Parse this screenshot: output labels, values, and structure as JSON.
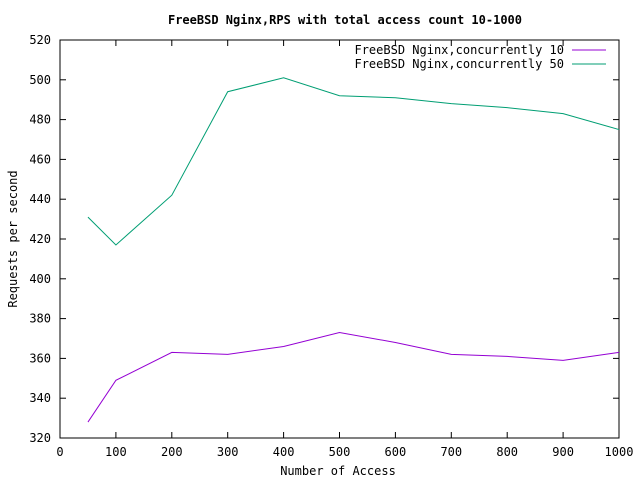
{
  "chart_data": {
    "type": "line",
    "title": "FreeBSD Nginx,RPS with total access count 10-1000",
    "xlabel": "Number of Access",
    "ylabel": "Requests per second",
    "xlim": [
      0,
      1000
    ],
    "ylim": [
      320,
      520
    ],
    "xticks": [
      0,
      100,
      200,
      300,
      400,
      500,
      600,
      700,
      800,
      900,
      1000
    ],
    "yticks": [
      320,
      340,
      360,
      380,
      400,
      420,
      440,
      460,
      480,
      500,
      520
    ],
    "grid": false,
    "legend_position": "top-right",
    "series": [
      {
        "name": "FreeBSD Nginx,concurrently 10",
        "color": "#9400d3",
        "x": [
          50,
          100,
          200,
          300,
          400,
          500,
          600,
          700,
          800,
          900,
          1000
        ],
        "y": [
          328,
          349,
          363,
          362,
          366,
          373,
          368,
          362,
          361,
          359,
          363
        ]
      },
      {
        "name": "FreeBSD Nginx,concurrently 50",
        "color": "#009e73",
        "x": [
          50,
          100,
          200,
          300,
          400,
          500,
          600,
          700,
          800,
          900,
          1000
        ],
        "y": [
          431,
          417,
          442,
          494,
          501,
          492,
          491,
          488,
          486,
          483,
          475
        ]
      }
    ]
  }
}
